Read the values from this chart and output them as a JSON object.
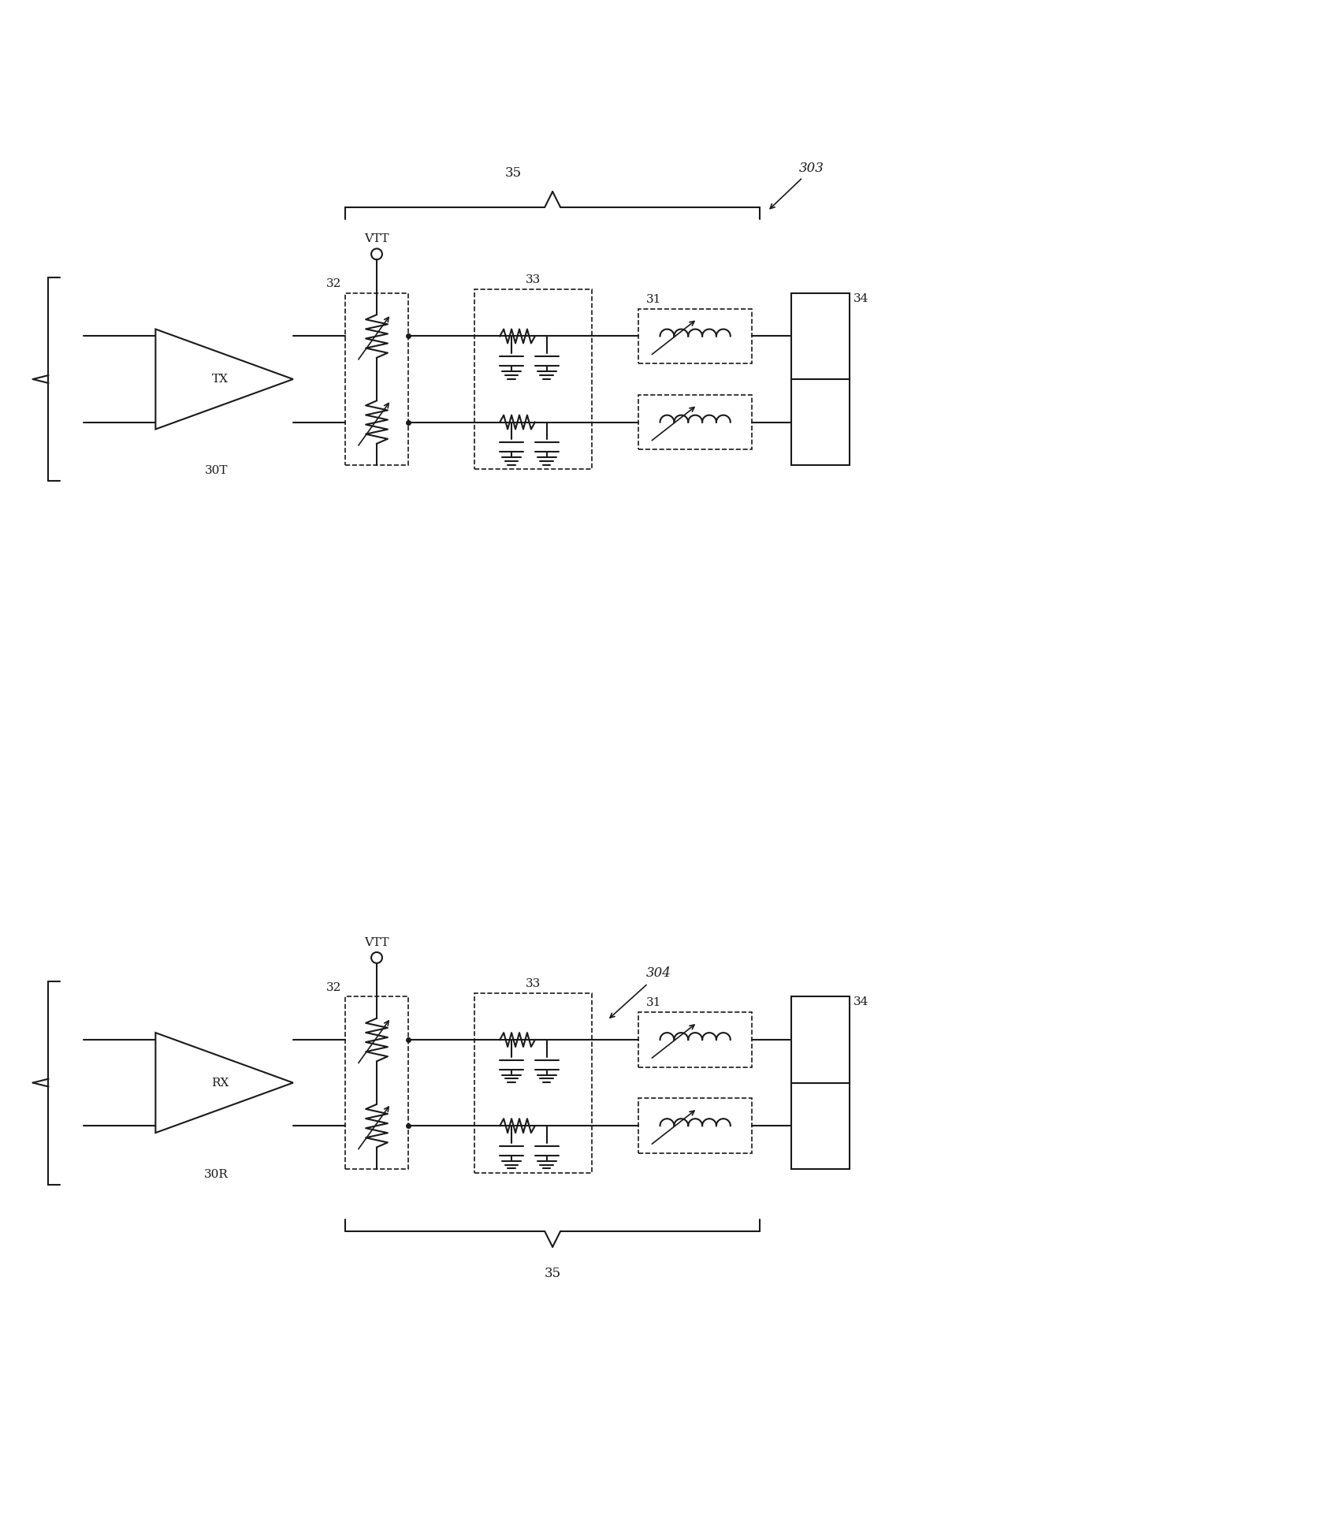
{
  "bg_color": "#ffffff",
  "line_color": "#1a1a1a",
  "fig_width": 16.8,
  "fig_height": 19.27,
  "labels": {
    "TX": "TX",
    "RX": "RX",
    "VTT_top": "VTT",
    "VTT_bot": "VTT",
    "label_32_top": "32",
    "label_32_bot": "32",
    "label_33_top": "33",
    "label_33_bot": "33",
    "label_31_top": "31",
    "label_31_bot": "31",
    "label_34_top": "34",
    "label_34_bot": "34",
    "label_35_top": "35",
    "label_35_bot": "35",
    "label_303": "303",
    "label_304": "304",
    "label_30T": "30T",
    "label_30R": "30R"
  }
}
